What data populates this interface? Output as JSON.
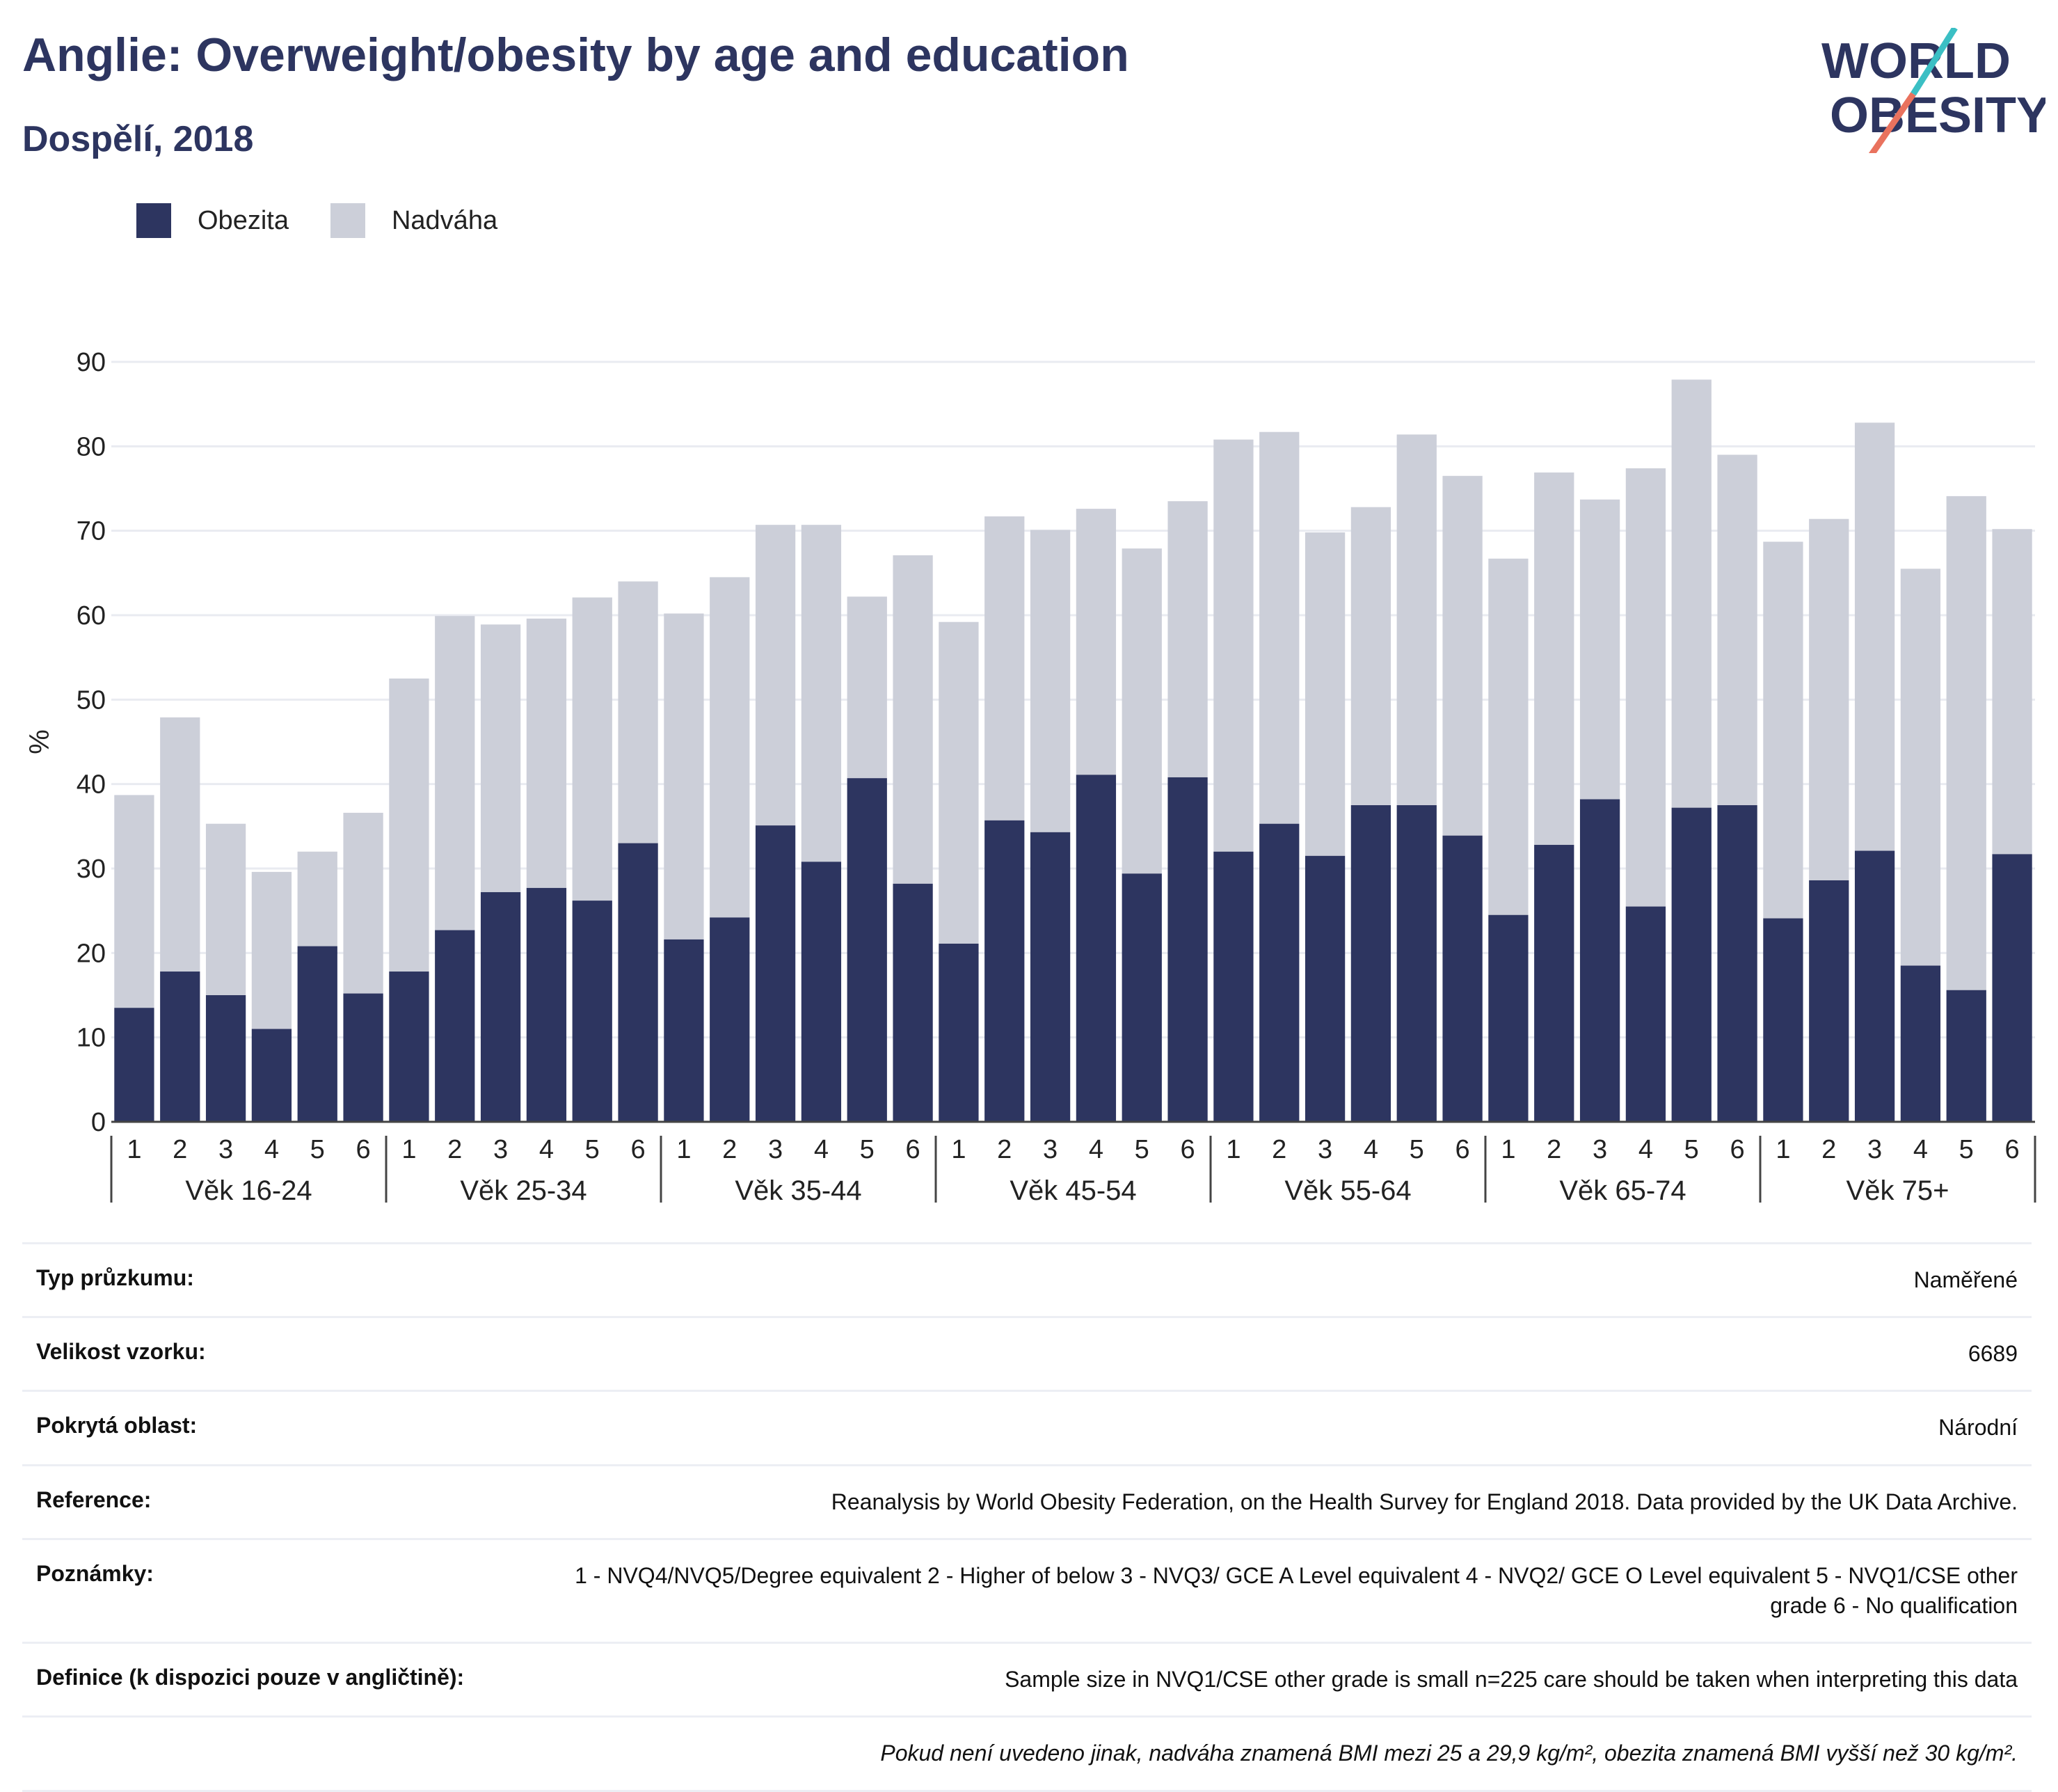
{
  "header": {
    "title": "Anglie: Overweight/obesity by age and education",
    "subtitle": "Dospělí, 2018"
  },
  "logo": {
    "line1": "WORLD",
    "line2": "OBESITY",
    "accent_teal": "#3bbfc4",
    "accent_red": "#e9725e"
  },
  "colors": {
    "obesity": "#2d3560",
    "overweight": "#cccfd9",
    "grid": "#e9ebf1"
  },
  "chart_data": {
    "type": "bar",
    "stacked": true,
    "ylabel": "%",
    "ylim": [
      0,
      90
    ],
    "yticks": [
      0,
      10,
      20,
      30,
      40,
      50,
      60,
      70,
      80,
      90
    ],
    "grid": true,
    "legend_position": "top-left",
    "groups": [
      {
        "label": "Věk 16-24",
        "categories": [
          "1",
          "2",
          "3",
          "4",
          "5",
          "6"
        ],
        "obesity": [
          13.5,
          17.8,
          15.0,
          11.0,
          20.8,
          15.2
        ],
        "total": [
          38.7,
          47.9,
          35.3,
          29.6,
          32.0,
          36.6
        ]
      },
      {
        "label": "Věk 25-34",
        "categories": [
          "1",
          "2",
          "3",
          "4",
          "5",
          "6"
        ],
        "obesity": [
          17.8,
          22.7,
          27.2,
          27.7,
          26.2,
          33.0
        ],
        "total": [
          52.5,
          59.9,
          58.9,
          59.6,
          62.1,
          64.0
        ]
      },
      {
        "label": "Věk 35-44",
        "categories": [
          "1",
          "2",
          "3",
          "4",
          "5",
          "6"
        ],
        "obesity": [
          21.6,
          24.2,
          35.1,
          30.8,
          40.7,
          28.2
        ],
        "total": [
          60.2,
          64.5,
          70.7,
          70.7,
          62.2,
          67.1
        ]
      },
      {
        "label": "Věk 45-54",
        "categories": [
          "1",
          "2",
          "3",
          "4",
          "5",
          "6"
        ],
        "obesity": [
          21.1,
          35.7,
          34.3,
          41.1,
          29.4,
          40.8
        ],
        "total": [
          59.2,
          71.7,
          70.1,
          72.6,
          67.9,
          73.5
        ]
      },
      {
        "label": "Věk 55-64",
        "categories": [
          "1",
          "2",
          "3",
          "4",
          "5",
          "6"
        ],
        "obesity": [
          32.0,
          35.3,
          31.5,
          37.5,
          37.5,
          33.9
        ],
        "total": [
          80.8,
          81.7,
          69.8,
          72.8,
          81.4,
          76.5
        ]
      },
      {
        "label": "Věk 65-74",
        "categories": [
          "1",
          "2",
          "3",
          "4",
          "5",
          "6"
        ],
        "obesity": [
          24.5,
          32.8,
          38.2,
          25.5,
          37.2,
          37.5
        ],
        "total": [
          66.7,
          76.9,
          73.7,
          77.4,
          87.9,
          79.0
        ]
      },
      {
        "label": "Věk 75+",
        "categories": [
          "1",
          "2",
          "3",
          "4",
          "5",
          "6"
        ],
        "obesity": [
          24.1,
          28.6,
          32.1,
          18.5,
          15.6,
          31.7
        ],
        "total": [
          68.7,
          71.4,
          82.8,
          65.5,
          74.1,
          70.2
        ]
      }
    ],
    "series": [
      {
        "name": "Obezita",
        "color": "#2d3560"
      },
      {
        "name": "Nadváha",
        "color": "#cccfd9"
      }
    ]
  },
  "info_table": [
    {
      "label": "Typ průzkumu:",
      "value": "Naměřené"
    },
    {
      "label": "Velikost vzorku:",
      "value": "6689"
    },
    {
      "label": "Pokrytá oblast:",
      "value": "Národní"
    },
    {
      "label": "Reference:",
      "value": "Reanalysis by World Obesity Federation, on the Health Survey for England 2018. Data provided by the UK Data Archive."
    },
    {
      "label": "Poznámky:",
      "value": "1 - NVQ4/NVQ5/Degree equivalent 2 - Higher of below 3 - NVQ3/ GCE A Level equivalent 4 - NVQ2/ GCE O Level equivalent 5 - NVQ1/CSE other grade 6 - No qualification"
    },
    {
      "label": "Definice (k dispozici pouze v angličtině):",
      "value": "Sample size in NVQ1/CSE other grade is small n=225 care should be taken when interpreting this data"
    }
  ],
  "footnote": "Pokud není uvedeno jinak, nadváha znamená BMI mezi 25 a 29,9 kg/m², obezita znamená BMI vyšší než 30 kg/m²."
}
